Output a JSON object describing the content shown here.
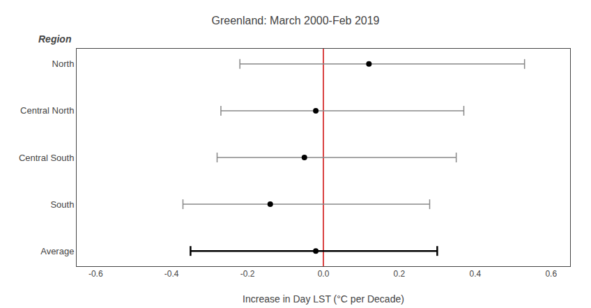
{
  "chart_data": {
    "type": "interval",
    "title": "Greenland: March 2000-Feb 2019",
    "xlabel": "Increase in Day LST (°C per Decade)",
    "annotations": [
      {
        "text": "Region"
      }
    ],
    "categories": [
      "North",
      "Central North",
      "Central South",
      "South",
      "Average"
    ],
    "values": [
      0.12,
      -0.02,
      -0.05,
      -0.14,
      -0.02
    ],
    "lower": [
      -0.22,
      -0.27,
      -0.28,
      -0.37,
      -0.35
    ],
    "upper": [
      0.53,
      0.37,
      0.35,
      0.28,
      0.3
    ],
    "color": "#000000",
    "colors": [
      "#888888",
      "#888888",
      "#888888",
      "#888888",
      "#000000"
    ],
    "vline": {
      "x": 0.0,
      "color": "#cc0000"
    },
    "xlim": [
      -0.65,
      0.65
    ],
    "xticks": [
      -0.6,
      -0.4,
      -0.2,
      {
        "value": 0.0,
        "label": "0.0"
      },
      0.2,
      0.4,
      0.6
    ],
    "grid": false
  }
}
